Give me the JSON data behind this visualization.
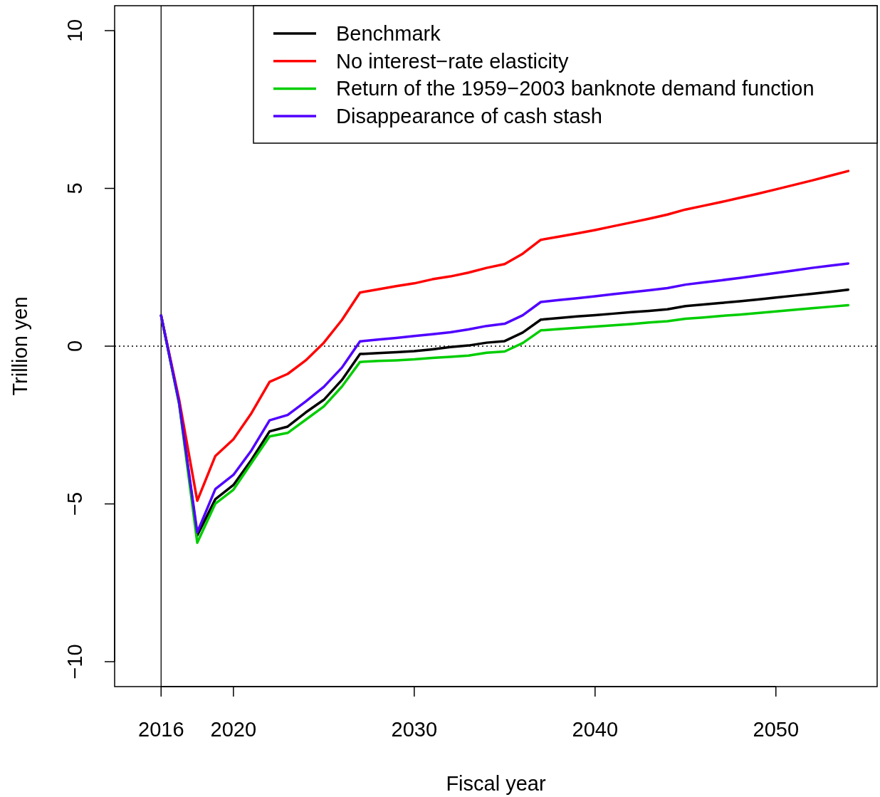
{
  "chart_data": {
    "type": "line",
    "xlabel": "Fiscal year",
    "ylabel": "Trillion yen",
    "x": [
      2016,
      2017,
      2018,
      2019,
      2020,
      2021,
      2022,
      2023,
      2024,
      2025,
      2026,
      2027,
      2028,
      2029,
      2030,
      2031,
      2032,
      2033,
      2034,
      2035,
      2036,
      2037,
      2038,
      2039,
      2040,
      2041,
      2042,
      2043,
      2044,
      2045,
      2046,
      2047,
      2048,
      2049,
      2050,
      2051,
      2052,
      2053,
      2054
    ],
    "series": [
      {
        "name": "Benchmark",
        "color": "#000000",
        "values": [
          0.97,
          -1.8,
          -6.0,
          -4.85,
          -4.4,
          -3.6,
          -2.7,
          -2.55,
          -2.1,
          -1.7,
          -1.07,
          -0.25,
          -0.22,
          -0.19,
          -0.16,
          -0.1,
          -0.03,
          0.02,
          0.11,
          0.16,
          0.43,
          0.84,
          0.89,
          0.94,
          0.98,
          1.03,
          1.08,
          1.12,
          1.17,
          1.27,
          1.32,
          1.37,
          1.42,
          1.48,
          1.54,
          1.6,
          1.66,
          1.72,
          1.79
        ]
      },
      {
        "name": "No interest−rate elasticity",
        "color": "#ff0000",
        "values": [
          0.97,
          -1.7,
          -4.9,
          -3.48,
          -2.95,
          -2.12,
          -1.13,
          -0.88,
          -0.45,
          0.11,
          0.83,
          1.7,
          1.8,
          1.9,
          1.99,
          2.12,
          2.21,
          2.33,
          2.48,
          2.6,
          2.93,
          3.37,
          3.47,
          3.57,
          3.68,
          3.8,
          3.92,
          4.04,
          4.17,
          4.33,
          4.45,
          4.57,
          4.7,
          4.83,
          4.97,
          5.11,
          5.25,
          5.4,
          5.55
        ]
      },
      {
        "name": "Return of the 1959−2003 banknote demand function",
        "color": "#00cd00",
        "values": [
          0.97,
          -1.85,
          -6.23,
          -4.99,
          -4.55,
          -3.7,
          -2.86,
          -2.75,
          -2.33,
          -1.91,
          -1.28,
          -0.5,
          -0.47,
          -0.45,
          -0.42,
          -0.37,
          -0.34,
          -0.3,
          -0.21,
          -0.17,
          0.1,
          0.5,
          0.54,
          0.58,
          0.62,
          0.66,
          0.7,
          0.75,
          0.79,
          0.87,
          0.91,
          0.96,
          1.0,
          1.05,
          1.1,
          1.15,
          1.2,
          1.25,
          1.3
        ]
      },
      {
        "name": "Disappearance of cash stash",
        "color": "#5000ff",
        "values": [
          0.97,
          -1.8,
          -5.9,
          -4.53,
          -4.08,
          -3.3,
          -2.35,
          -2.18,
          -1.75,
          -1.29,
          -0.68,
          0.15,
          0.21,
          0.26,
          0.32,
          0.38,
          0.44,
          0.53,
          0.64,
          0.71,
          0.98,
          1.4,
          1.46,
          1.52,
          1.58,
          1.65,
          1.71,
          1.77,
          1.84,
          1.95,
          2.02,
          2.09,
          2.16,
          2.24,
          2.32,
          2.4,
          2.48,
          2.55,
          2.62
        ]
      }
    ],
    "xlim": [
      2013.43,
      2055.6
    ],
    "ylim": [
      -10.79,
      10.79
    ],
    "xticks": [
      2016,
      2020,
      2030,
      2040,
      2050
    ],
    "yticks": [
      -10,
      -5,
      0,
      5,
      10
    ],
    "ref_lines": [
      {
        "axis": "x",
        "value": 2016,
        "color": "#000000",
        "line_style": "solid"
      },
      {
        "axis": "y",
        "value": 0,
        "color": "#000000",
        "line_style": "dotted"
      }
    ],
    "legend": "top right",
    "grid": false,
    "marker": "none",
    "line_style": "solid"
  }
}
